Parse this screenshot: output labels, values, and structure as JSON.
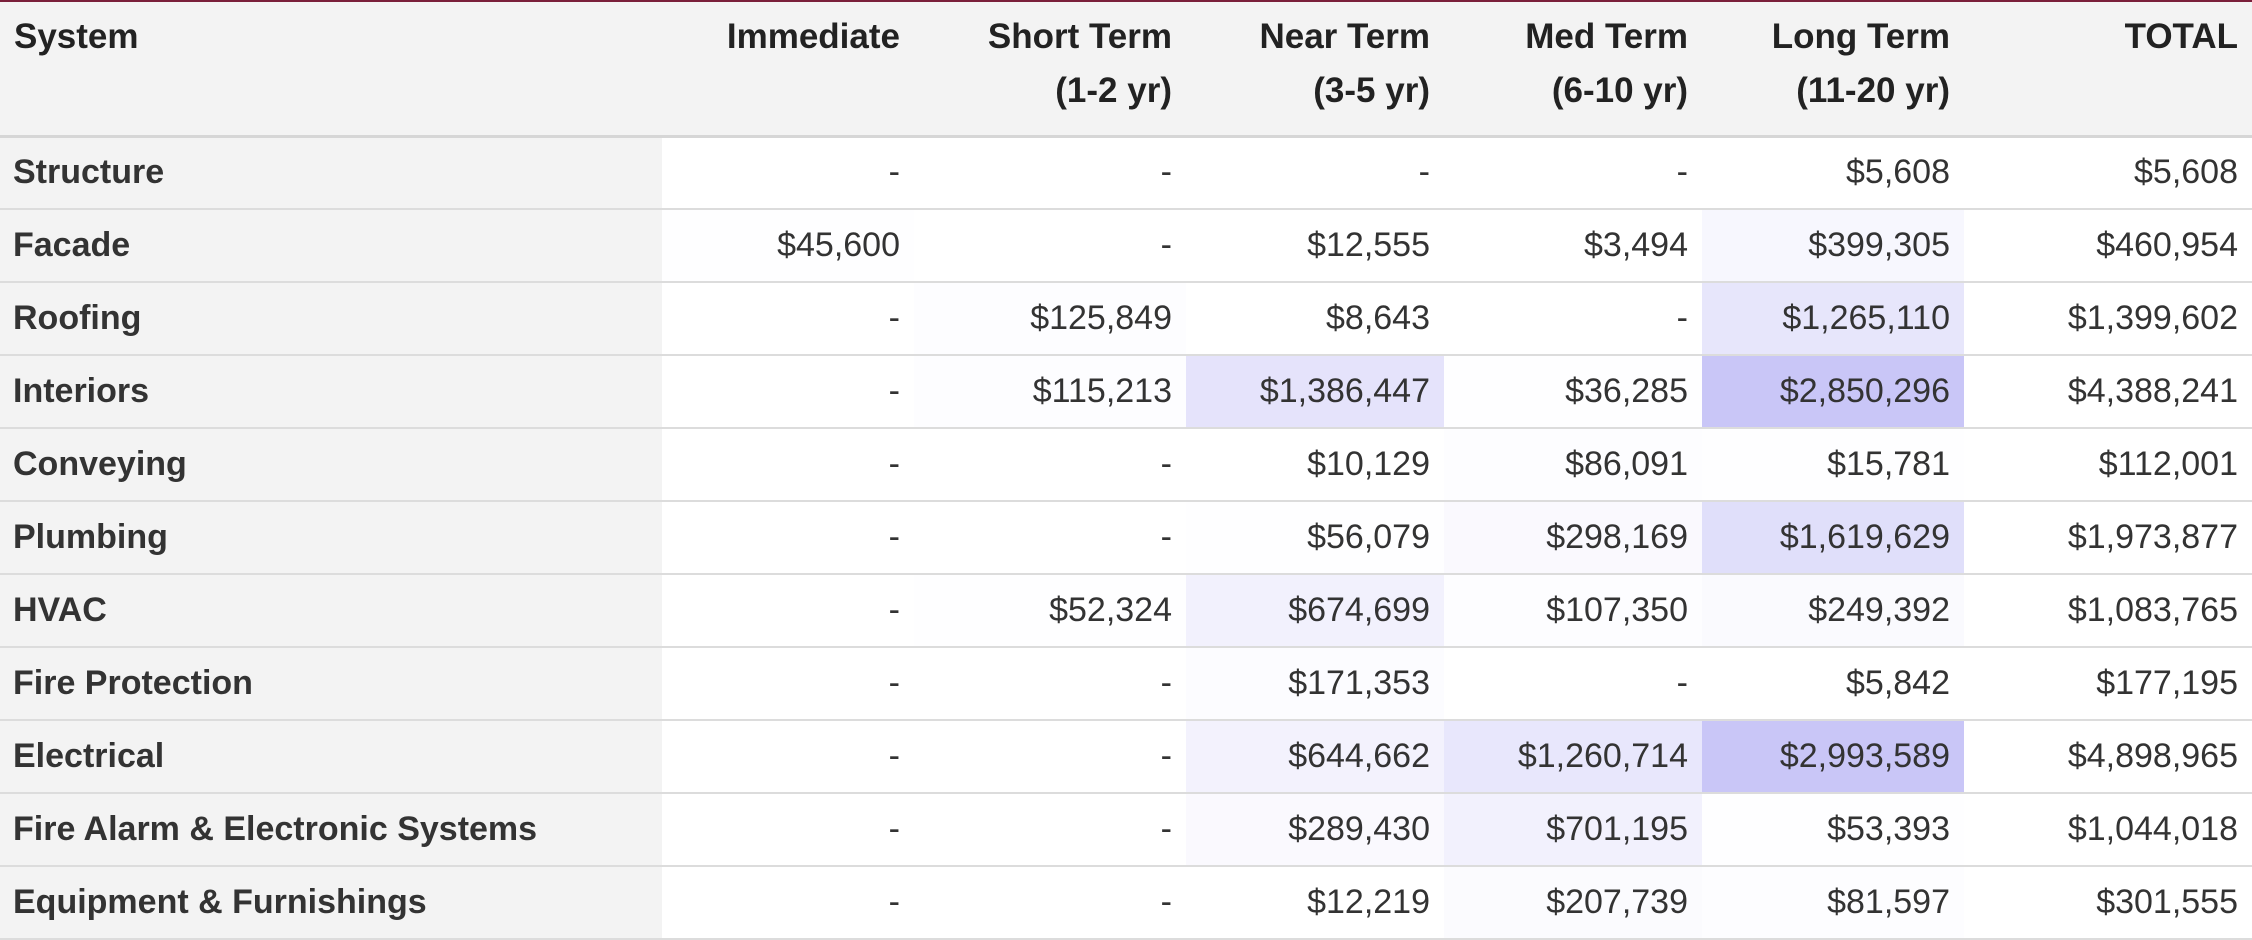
{
  "table": {
    "headers": [
      "System",
      "Immediate",
      "Short Term\n(1-2 yr)",
      "Near Term\n(3-5 yr)",
      "Med Term\n(6-10 yr)",
      "Long Term\n(11-20 yr)",
      "TOTAL"
    ],
    "rows": [
      {
        "system": "Structure",
        "cells": [
          "-",
          "-",
          "-",
          "-",
          "$5,608",
          "$5,608"
        ],
        "shades": [
          0,
          0,
          0,
          0,
          0,
          0
        ]
      },
      {
        "system": "Facade",
        "cells": [
          "$45,600",
          "-",
          "$12,555",
          "$3,494",
          "$399,305",
          "$460,954"
        ],
        "shades": [
          0.02,
          0,
          0,
          0,
          0.14,
          0
        ]
      },
      {
        "system": "Roofing",
        "cells": [
          "-",
          "$125,849",
          "$8,643",
          "-",
          "$1,265,110",
          "$1,399,602"
        ],
        "shades": [
          0,
          0.04,
          0,
          0,
          0.44,
          0
        ]
      },
      {
        "system": "Interiors",
        "cells": [
          "-",
          "$115,213",
          "$1,386,447",
          "$36,285",
          "$2,850,296",
          "$4,388,241"
        ],
        "shades": [
          0,
          0.04,
          0.49,
          0.01,
          1,
          0
        ]
      },
      {
        "system": "Conveying",
        "cells": [
          "-",
          "-",
          "$10,129",
          "$86,091",
          "$15,781",
          "$112,001"
        ],
        "shades": [
          0,
          0,
          0,
          0.03,
          0.01,
          0
        ]
      },
      {
        "system": "Plumbing",
        "cells": [
          "-",
          "-",
          "$56,079",
          "$298,169",
          "$1,619,629",
          "$1,973,877"
        ],
        "shades": [
          0,
          0,
          0.02,
          0.1,
          0.57,
          0
        ]
      },
      {
        "system": "HVAC",
        "cells": [
          "-",
          "$52,324",
          "$674,699",
          "$107,350",
          "$249,392",
          "$1,083,765"
        ],
        "shades": [
          0,
          0.02,
          0.24,
          0.04,
          0.09,
          0
        ]
      },
      {
        "system": "Fire Protection",
        "cells": [
          "-",
          "-",
          "$171,353",
          "-",
          "$5,842",
          "$177,195"
        ],
        "shades": [
          0,
          0,
          0.06,
          0,
          0,
          0
        ]
      },
      {
        "system": "Electrical",
        "cells": [
          "-",
          "-",
          "$644,662",
          "$1,260,714",
          "$2,993,589",
          "$4,898,965"
        ],
        "shades": [
          0,
          0,
          0.22,
          0.42,
          1,
          0
        ]
      },
      {
        "system": "Fire Alarm & Electronic Systems",
        "cells": [
          "-",
          "-",
          "$289,430",
          "$701,195",
          "$53,393",
          "$1,044,018"
        ],
        "shades": [
          0,
          0,
          0.1,
          0.25,
          0.02,
          0
        ]
      },
      {
        "system": "Equipment & Furnishings",
        "cells": [
          "-",
          "-",
          "$12,219",
          "$207,739",
          "$81,597",
          "$301,555"
        ],
        "shades": [
          0,
          0,
          0,
          0.07,
          0.03,
          0
        ]
      }
    ]
  },
  "colors": {
    "accent_rule": "#7a1f3a",
    "heat_max": "#c9c6f7",
    "header_bg": "#f3f3f3"
  }
}
